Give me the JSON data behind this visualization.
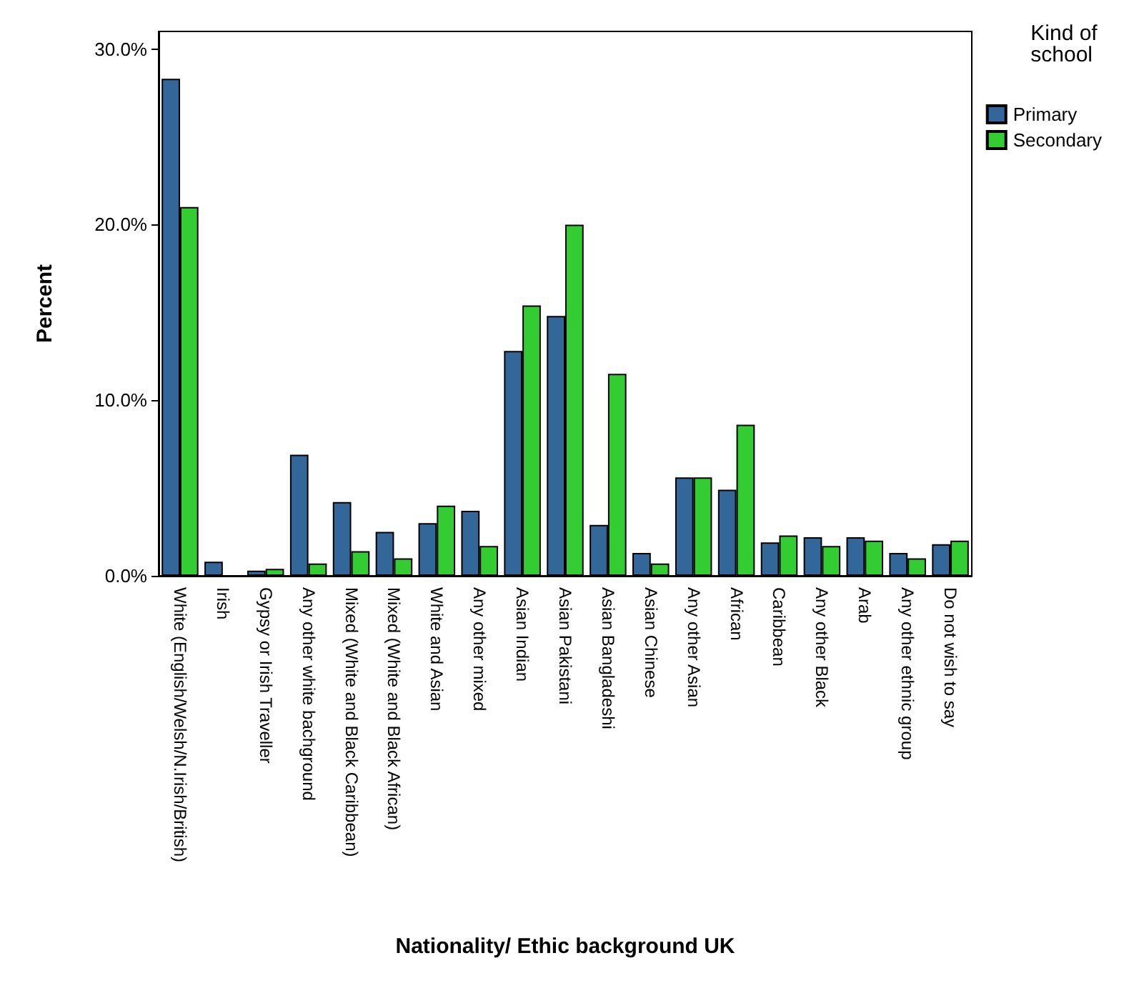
{
  "chart_data": {
    "type": "bar",
    "xlabel": "Nationality/ Ethic background UK",
    "ylabel": "Percent",
    "legend_title": "Kind of school",
    "categories": [
      "White (English/Welsh/N.Irish/British)",
      "Irish",
      "Gypsy or Irish Traveller",
      "Any other white bachground",
      "Mixed (White and Black Caribbean)",
      "Mixed (White and Black African)",
      "White and Asian",
      "Any other mixed",
      "Asian Indian",
      "Asian Pakistani",
      "Asian Bangladeshi",
      "Asian Chinese",
      "Any other Asian",
      "African",
      "Caribbean",
      "Any other Black",
      "Arab",
      "Any other ethnic group",
      "Do not wish to say"
    ],
    "series": [
      {
        "name": "Primary",
        "color": "#336699",
        "values": [
          28.3,
          0.8,
          0.3,
          6.9,
          4.2,
          2.5,
          3.0,
          3.7,
          12.8,
          14.8,
          2.9,
          1.3,
          5.6,
          4.9,
          1.9,
          2.2,
          2.2,
          1.3,
          1.8
        ]
      },
      {
        "name": "Secondary",
        "color": "#33cc33",
        "values": [
          21.0,
          null,
          0.4,
          0.7,
          1.4,
          1.0,
          4.0,
          1.7,
          15.4,
          20.0,
          11.5,
          0.7,
          5.6,
          8.6,
          2.3,
          1.7,
          2.0,
          1.0,
          2.0
        ]
      }
    ],
    "ylim": [
      0,
      31
    ],
    "yticks": [
      {
        "value": 0,
        "label": "0.0%"
      },
      {
        "value": 10,
        "label": "10.0%"
      },
      {
        "value": 20,
        "label": "20.0%"
      },
      {
        "value": 30,
        "label": "30.0%"
      }
    ],
    "grid": false,
    "legend": "top right"
  }
}
